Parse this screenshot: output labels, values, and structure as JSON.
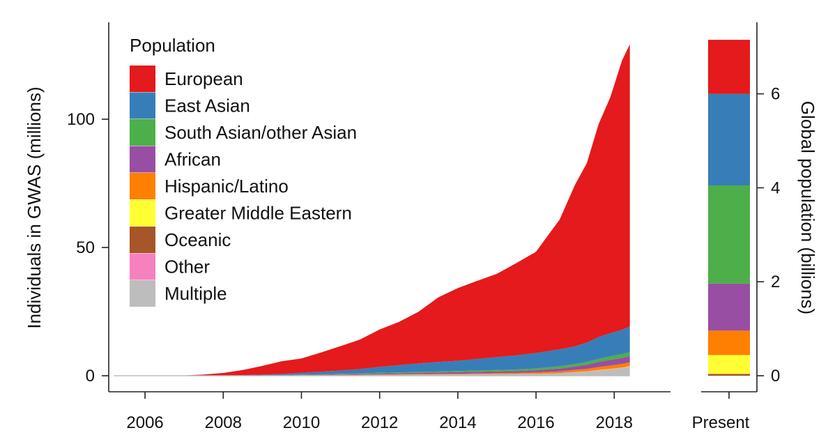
{
  "chart_data": [
    {
      "type": "area",
      "subtype": "stacked",
      "ylabel": "Individuals in GWAS (millions)",
      "xlim": [
        2005.0,
        2018.6
      ],
      "ylim": [
        -4,
        130
      ],
      "x_ticks": [
        2006,
        2008,
        2010,
        2012,
        2014,
        2016,
        2018
      ],
      "x_tick_labels": [
        "2006",
        "2008",
        "2010",
        "2012",
        "2014",
        "2016",
        "2018"
      ],
      "y_ticks": [
        0,
        50,
        100
      ],
      "y_tick_labels": [
        "0",
        "50",
        "100"
      ],
      "grid": false,
      "legend": {
        "title": "Population",
        "placement": "top-left"
      },
      "x": [
        2005.2,
        2007.0,
        2007.5,
        2008.0,
        2008.5,
        2009.0,
        2009.5,
        2010.0,
        2010.5,
        2011.0,
        2011.5,
        2012.0,
        2012.5,
        2013.0,
        2013.5,
        2014.0,
        2014.5,
        2015.0,
        2015.5,
        2016.0,
        2016.3,
        2016.6,
        2017.0,
        2017.3,
        2017.6,
        2017.9,
        2018.2,
        2018.4
      ],
      "series": [
        {
          "name": "Multiple",
          "color": "#bdbdbd",
          "values": [
            0,
            0,
            0,
            0,
            0.02,
            0.05,
            0.1,
            0.15,
            0.2,
            0.25,
            0.3,
            0.35,
            0.4,
            0.45,
            0.5,
            0.55,
            0.6,
            0.65,
            0.7,
            0.8,
            0.9,
            1.0,
            1.3,
            1.6,
            2.0,
            2.5,
            3.0,
            3.5
          ]
        },
        {
          "name": "Other",
          "color": "#f781bf",
          "values": [
            0,
            0,
            0,
            0,
            0,
            0,
            0,
            0,
            0,
            0,
            0,
            0,
            0,
            0,
            0,
            0,
            0,
            0,
            0,
            0,
            0,
            0,
            0.05,
            0.05,
            0.1,
            0.1,
            0.1,
            0.1
          ]
        },
        {
          "name": "Oceanic",
          "color": "#a65628",
          "values": [
            0,
            0,
            0,
            0,
            0,
            0,
            0,
            0,
            0,
            0,
            0,
            0,
            0,
            0,
            0,
            0,
            0,
            0,
            0,
            0,
            0,
            0,
            0,
            0,
            0,
            0,
            0.02,
            0.02
          ]
        },
        {
          "name": "Greater Middle Eastern",
          "color": "#ffff33",
          "values": [
            0,
            0,
            0,
            0,
            0,
            0,
            0,
            0,
            0,
            0,
            0,
            0,
            0,
            0,
            0,
            0,
            0,
            0,
            0,
            0,
            0,
            0,
            0.05,
            0.05,
            0.1,
            0.1,
            0.1,
            0.1
          ]
        },
        {
          "name": "Hispanic/Latino",
          "color": "#ff7f00",
          "values": [
            0,
            0,
            0,
            0,
            0,
            0.01,
            0.02,
            0.05,
            0.08,
            0.1,
            0.12,
            0.15,
            0.18,
            0.2,
            0.22,
            0.25,
            0.3,
            0.35,
            0.4,
            0.5,
            0.6,
            0.7,
            0.9,
            1.0,
            1.2,
            1.3,
            1.4,
            1.5
          ]
        },
        {
          "name": "African",
          "color": "#984ea3",
          "values": [
            0,
            0,
            0,
            0,
            0.02,
            0.05,
            0.1,
            0.15,
            0.2,
            0.25,
            0.3,
            0.4,
            0.45,
            0.5,
            0.55,
            0.6,
            0.65,
            0.7,
            0.75,
            0.85,
            1.0,
            1.1,
            1.3,
            1.6,
            2.0,
            2.2,
            2.3,
            2.4
          ]
        },
        {
          "name": "South Asian/other Asian",
          "color": "#4daf4a",
          "values": [
            0,
            0,
            0,
            0,
            0.01,
            0.03,
            0.05,
            0.08,
            0.1,
            0.15,
            0.2,
            0.25,
            0.3,
            0.35,
            0.4,
            0.45,
            0.5,
            0.55,
            0.6,
            0.7,
            0.8,
            0.9,
            1.0,
            1.1,
            1.2,
            1.4,
            1.5,
            1.6
          ]
        },
        {
          "name": "East Asian",
          "color": "#377eb8",
          "values": [
            0,
            0,
            0,
            0.1,
            0.2,
            0.3,
            0.5,
            0.7,
            1.0,
            1.3,
            1.7,
            2.3,
            2.8,
            3.3,
            3.7,
            4.0,
            4.5,
            5.0,
            5.5,
            6.0,
            6.3,
            6.6,
            6.9,
            7.5,
            8.5,
            9.0,
            9.5,
            10.0
          ]
        },
        {
          "name": "European",
          "color": "#e41a1c",
          "values": [
            0,
            0.1,
            0.5,
            1.0,
            2.0,
            3.4,
            4.9,
            5.6,
            7.5,
            9.5,
            11.5,
            14.6,
            16.9,
            20.2,
            25.2,
            28.3,
            30.5,
            32.5,
            36.0,
            39.5,
            45.0,
            50.5,
            63.0,
            70.0,
            83.0,
            92.0,
            105.0,
            110.0
          ]
        }
      ]
    },
    {
      "type": "bar",
      "subtype": "stacked",
      "categories": [
        "Present"
      ],
      "ylabel": "Global population (billions)",
      "ylim": [
        -0.2,
        7.2
      ],
      "y_ticks": [
        0,
        2,
        4,
        6
      ],
      "y_tick_labels": [
        "0",
        "2",
        "4",
        "6"
      ],
      "series": [
        {
          "name": "Oceanic",
          "color": "#a65628",
          "values": [
            0.04
          ]
        },
        {
          "name": "Greater Middle Eastern",
          "color": "#ffff33",
          "values": [
            0.4
          ]
        },
        {
          "name": "Hispanic/Latino",
          "color": "#ff7f00",
          "values": [
            0.52
          ]
        },
        {
          "name": "African",
          "color": "#984ea3",
          "values": [
            1.0
          ]
        },
        {
          "name": "South Asian/other Asian",
          "color": "#4daf4a",
          "values": [
            2.09
          ]
        },
        {
          "name": "East Asian",
          "color": "#377eb8",
          "values": [
            1.95
          ]
        },
        {
          "name": "European",
          "color": "#e41a1c",
          "values": [
            1.15
          ]
        }
      ]
    }
  ]
}
